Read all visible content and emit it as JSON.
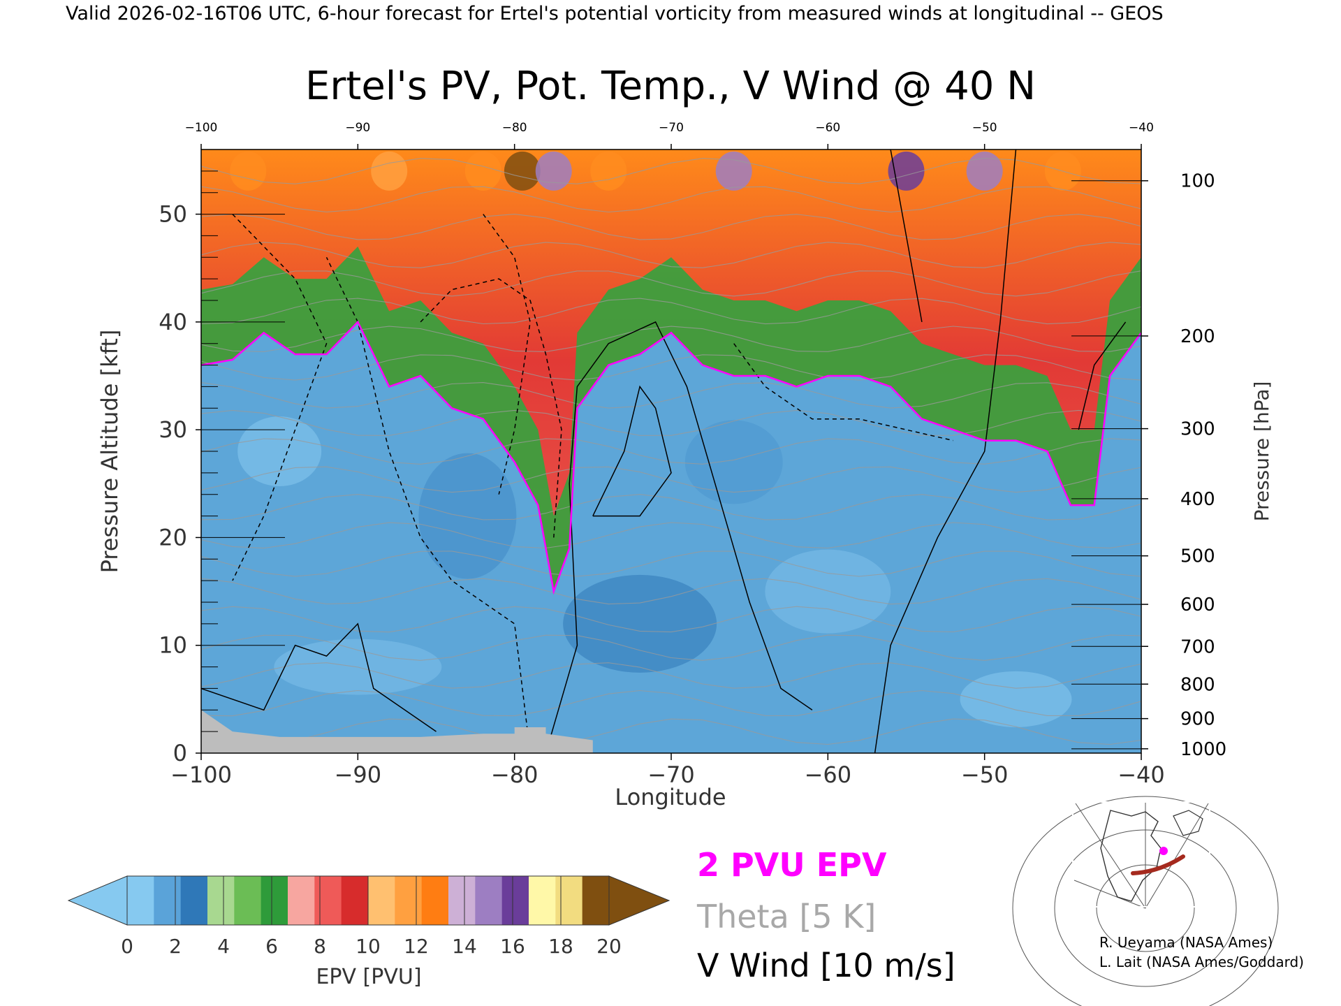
{
  "header": {
    "valid_line": "Valid 2026-02-16T06 UTC, 6-hour forecast for Ertel's potential vorticity from measured winds at longitudinal -- GEOS"
  },
  "chart_data": {
    "type": "heatmap",
    "title": "Ertel's PV, Pot. Temp., V Wind @ 40 N",
    "xlabel": "Longitude",
    "ylabel_left": "Pressure Altitude [kft]",
    "ylabel_right": "Pressure [hPa]",
    "xlim": [
      -100,
      -40
    ],
    "ylim_kft": [
      0,
      56
    ],
    "x_ticks": [
      -100,
      -90,
      -80,
      -70,
      -60,
      -50,
      -40
    ],
    "x_tick_labels_bottom": [
      "−100",
      "−90",
      "−80",
      "−70",
      "−60",
      "−50",
      "−40"
    ],
    "x_tick_labels_top": [
      "−100",
      "−90",
      "−80",
      "−70",
      "−60",
      "−50",
      "−40"
    ],
    "y_ticks_kft": [
      0,
      10,
      20,
      30,
      40,
      50
    ],
    "y_tick_labels_kft": [
      "0",
      "10",
      "20",
      "30",
      "40",
      "50"
    ],
    "pressure_ticks": [
      {
        "hpa": 100,
        "kft": 53.1,
        "label": "100"
      },
      {
        "hpa": 200,
        "kft": 38.7,
        "label": "200"
      },
      {
        "hpa": 300,
        "kft": 30.1,
        "label": "300"
      },
      {
        "hpa": 400,
        "kft": 23.6,
        "label": "400"
      },
      {
        "hpa": 500,
        "kft": 18.3,
        "label": "500"
      },
      {
        "hpa": 600,
        "kft": 13.8,
        "label": "600"
      },
      {
        "hpa": 700,
        "kft": 9.9,
        "label": "700"
      },
      {
        "hpa": 800,
        "kft": 6.4,
        "label": "800"
      },
      {
        "hpa": 900,
        "kft": 3.2,
        "label": "900"
      },
      {
        "hpa": 1000,
        "kft": 0.4,
        "label": "1000"
      }
    ],
    "tropopause_2pvu_kft": [
      [
        -100,
        36
      ],
      [
        -98,
        36.5
      ],
      [
        -96,
        39
      ],
      [
        -94,
        37
      ],
      [
        -92,
        37
      ],
      [
        -90,
        40
      ],
      [
        -88,
        34
      ],
      [
        -86,
        35
      ],
      [
        -84,
        32
      ],
      [
        -82,
        31
      ],
      [
        -80,
        27
      ],
      [
        -78.5,
        23
      ],
      [
        -77.5,
        15
      ],
      [
        -76.5,
        19
      ],
      [
        -76,
        32
      ],
      [
        -74,
        36
      ],
      [
        -72,
        37
      ],
      [
        -70,
        39
      ],
      [
        -68,
        36
      ],
      [
        -66,
        35
      ],
      [
        -64,
        35
      ],
      [
        -62,
        34
      ],
      [
        -60,
        35
      ],
      [
        -58,
        35
      ],
      [
        -56,
        34
      ],
      [
        -54,
        31
      ],
      [
        -52,
        30
      ],
      [
        -50,
        29
      ],
      [
        -48,
        29
      ],
      [
        -46,
        28
      ],
      [
        -44.5,
        23
      ],
      [
        -43,
        23
      ],
      [
        -42,
        35
      ],
      [
        -40,
        39
      ]
    ],
    "colorbar": {
      "label": "EPV [PVU]",
      "ticks": [
        "0",
        "2",
        "4",
        "6",
        "8",
        "10",
        "12",
        "14",
        "16",
        "18",
        "20"
      ],
      "colors": [
        "#86c9f0",
        "#5aa3d9",
        "#2f78b8",
        "#a8d890",
        "#6bbd55",
        "#2e9b3a",
        "#f7a6a0",
        "#ef5a58",
        "#d72c2c",
        "#ffc070",
        "#ffa040",
        "#ff7d12",
        "#cdb0d6",
        "#9d7ec2",
        "#6a3d9a",
        "#fff8a8",
        "#f2dc80",
        "#7f4f10"
      ]
    },
    "legend": {
      "pvu": "2 PVU EPV",
      "theta": "Theta [5 K]",
      "vwind": "V Wind [10 m/s]"
    },
    "legend_colors": {
      "pvu": "#ff00ff",
      "theta": "#a8a8a8",
      "vwind": "#000000"
    }
  },
  "credits": {
    "line1": "R. Ueyama (NASA Ames)",
    "line2": "L. Lait (NASA Ames/Goddard)"
  }
}
